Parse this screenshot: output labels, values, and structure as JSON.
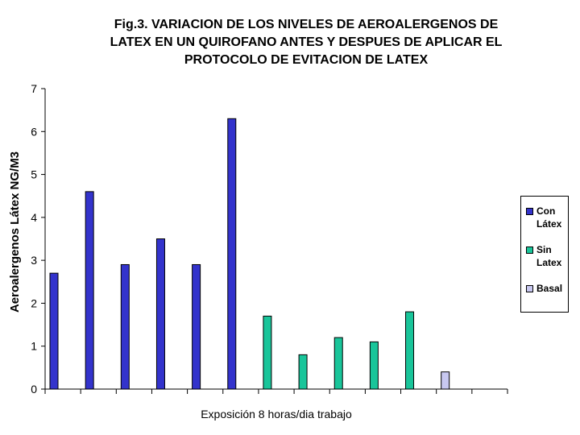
{
  "chart_data": {
    "type": "bar",
    "title": "Fig.3. VARIACION DE LOS NIVELES DE AEROALERGENOS DE\nLATEX EN UN QUIROFANO ANTES  Y DESPUES DE APLICAR EL\nPROTOCOLO DE EVITACION DE LATEX",
    "xlabel": "Exposición 8 horas/dia  trabajo",
    "ylabel": "Aeroalergenos Látex NG/M3",
    "ylim": [
      0,
      7
    ],
    "yticks": [
      "0",
      "1",
      "2",
      "3",
      "4",
      "5",
      "6",
      "7"
    ],
    "categories": [
      "",
      "",
      "",
      "",
      "",
      "",
      "",
      "",
      "",
      "",
      "",
      "",
      ""
    ],
    "grid": false,
    "legend_position": "right",
    "series": [
      {
        "name": "Con Látex",
        "color": "#3333cc",
        "values": [
          2.7,
          4.6,
          2.9,
          3.5,
          2.9,
          6.3,
          null,
          null,
          null,
          null,
          null,
          null,
          null
        ]
      },
      {
        "name": "Sin Latex",
        "color": "#19c59a",
        "values": [
          null,
          null,
          null,
          null,
          null,
          null,
          1.7,
          0.8,
          1.2,
          1.1,
          1.8,
          null,
          null
        ]
      },
      {
        "name": "Basal",
        "color": "#c8c8f0",
        "values": [
          null,
          null,
          null,
          null,
          null,
          null,
          null,
          null,
          null,
          null,
          null,
          0.4,
          null
        ]
      }
    ]
  }
}
